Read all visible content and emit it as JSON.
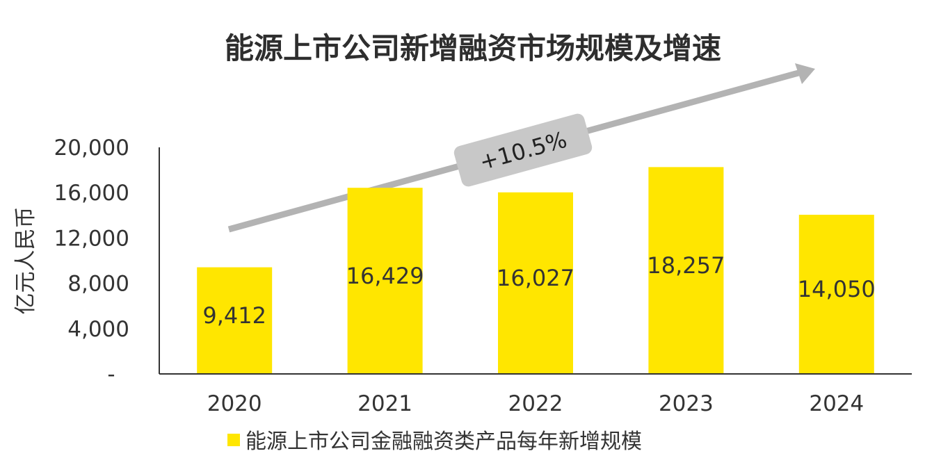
{
  "chart_data": {
    "type": "bar",
    "title": "能源上市公司新增融资市场规模及增速",
    "categories": [
      "2020",
      "2021",
      "2022",
      "2023",
      "2024"
    ],
    "series": [
      {
        "name": "能源上市公司金融融资类产品每年新增规模",
        "values": [
          9412,
          16429,
          16027,
          18257,
          14050
        ]
      }
    ],
    "data_labels": [
      "9,412",
      "16,429",
      "16,027",
      "18,257",
      "14,050"
    ],
    "ylabel": "亿元人民币",
    "xlabel": "",
    "ylim": [
      0,
      20000
    ],
    "yticks": [
      0,
      4000,
      8000,
      12000,
      16000,
      20000
    ],
    "ytick_labels": [
      "-",
      "4,000",
      "8,000",
      "12,000",
      "16,000",
      "20,000"
    ],
    "annotation": "+10.5%",
    "legend_position": "bottom",
    "grid": false,
    "colors": {
      "bar": "#FFE600",
      "trend_arrow": "#B3B3B3",
      "badge": "#C8C8C8",
      "axis": "#333333"
    }
  }
}
